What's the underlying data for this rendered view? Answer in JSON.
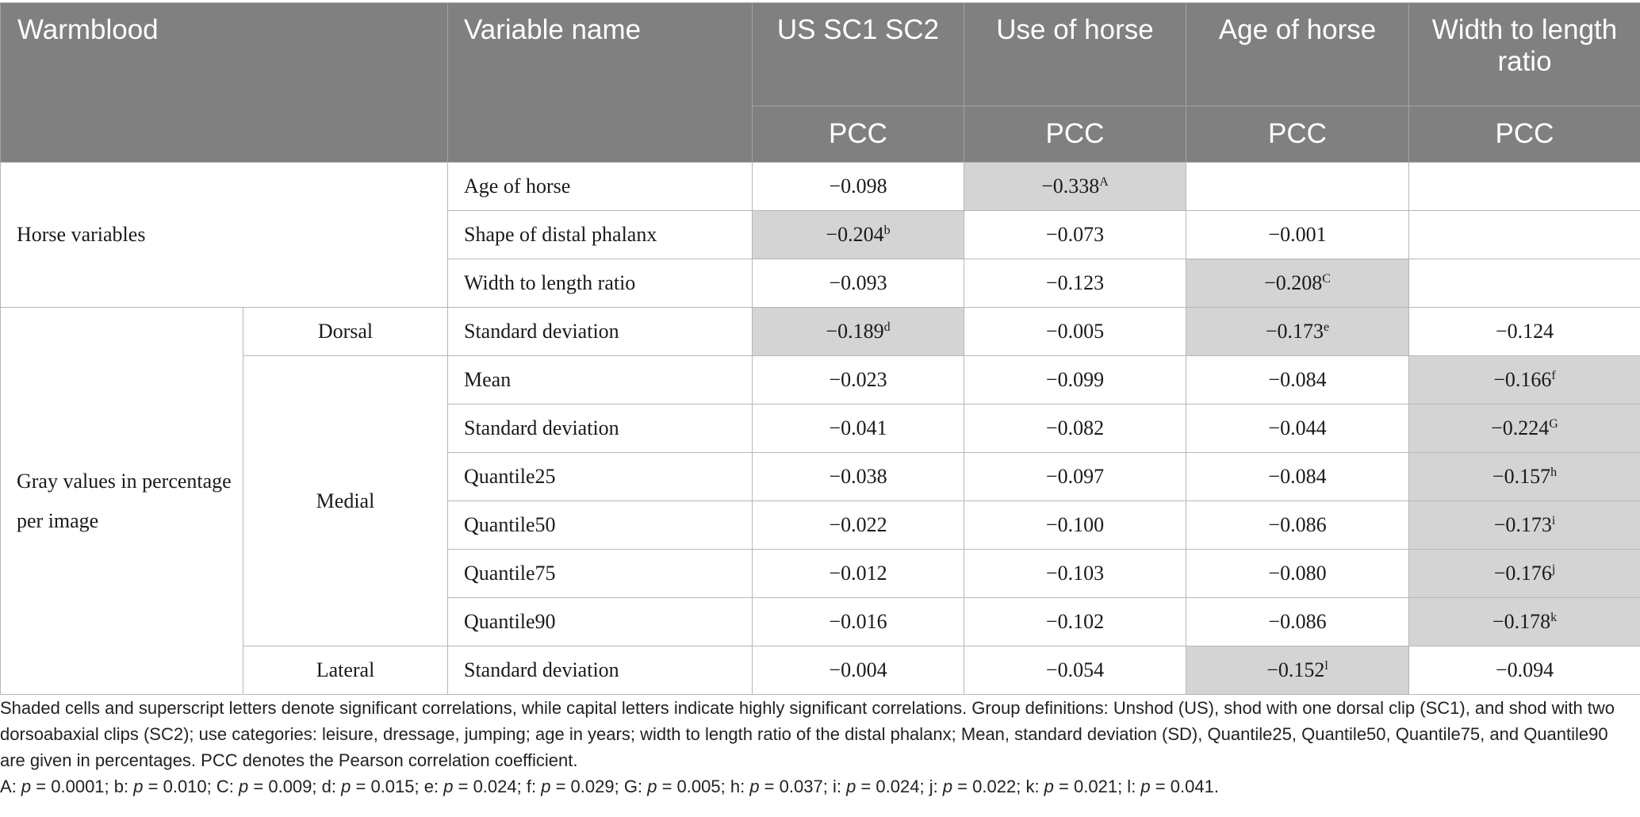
{
  "header": {
    "group_label": "Warmblood",
    "variable_label": "Variable name",
    "columns": [
      "US SC1 SC2",
      "Use of horse",
      "Age of horse",
      "Width to length ratio"
    ],
    "stat_label": "PCC"
  },
  "sections": [
    {
      "label": "Horse variables",
      "rows": [
        {
          "variable": "Age of horse",
          "cells": [
            {
              "v": "−0.098"
            },
            {
              "v": "−0.338",
              "sup": "A",
              "shaded": true
            },
            {
              "v": ""
            },
            {
              "v": ""
            }
          ]
        },
        {
          "variable": "Shape of distal phalanx",
          "cells": [
            {
              "v": "−0.204",
              "sup": "b",
              "shaded": true
            },
            {
              "v": "−0.073"
            },
            {
              "v": "−0.001"
            },
            {
              "v": ""
            }
          ]
        },
        {
          "variable": "Width to length ratio",
          "cells": [
            {
              "v": "−0.093"
            },
            {
              "v": "−0.123"
            },
            {
              "v": "−0.208",
              "sup": "C",
              "shaded": true
            },
            {
              "v": ""
            }
          ]
        }
      ]
    },
    {
      "label": "Gray values in percentage per image",
      "subgroups": [
        {
          "label": "Dorsal",
          "rows": [
            {
              "variable": "Standard deviation",
              "cells": [
                {
                  "v": "−0.189",
                  "sup": "d",
                  "shaded": true
                },
                {
                  "v": "−0.005"
                },
                {
                  "v": "−0.173",
                  "sup": "e",
                  "shaded": true
                },
                {
                  "v": "−0.124"
                }
              ]
            }
          ]
        },
        {
          "label": "Medial",
          "rows": [
            {
              "variable": "Mean",
              "cells": [
                {
                  "v": "−0.023"
                },
                {
                  "v": "−0.099"
                },
                {
                  "v": "−0.084"
                },
                {
                  "v": "−0.166",
                  "sup": "f",
                  "shaded": true
                }
              ]
            },
            {
              "variable": "Standard deviation",
              "cells": [
                {
                  "v": "−0.041"
                },
                {
                  "v": "−0.082"
                },
                {
                  "v": "−0.044"
                },
                {
                  "v": "−0.224",
                  "sup": "G",
                  "shaded": true
                }
              ]
            },
            {
              "variable": "Quantile25",
              "cells": [
                {
                  "v": "−0.038"
                },
                {
                  "v": "−0.097"
                },
                {
                  "v": "−0.084"
                },
                {
                  "v": "−0.157",
                  "sup": "h",
                  "shaded": true
                }
              ]
            },
            {
              "variable": "Quantile50",
              "cells": [
                {
                  "v": "−0.022"
                },
                {
                  "v": "−0.100"
                },
                {
                  "v": "−0.086"
                },
                {
                  "v": "−0.173",
                  "sup": "i",
                  "shaded": true
                }
              ]
            },
            {
              "variable": "Quantile75",
              "cells": [
                {
                  "v": "−0.012"
                },
                {
                  "v": "−0.103"
                },
                {
                  "v": "−0.080"
                },
                {
                  "v": "−0.176",
                  "sup": "j",
                  "shaded": true
                }
              ]
            },
            {
              "variable": "Quantile90",
              "cells": [
                {
                  "v": "−0.016"
                },
                {
                  "v": "−0.102"
                },
                {
                  "v": "−0.086"
                },
                {
                  "v": "−0.178",
                  "sup": "k",
                  "shaded": true
                }
              ]
            }
          ]
        },
        {
          "label": "Lateral",
          "rows": [
            {
              "variable": "Standard deviation",
              "cells": [
                {
                  "v": "−0.004"
                },
                {
                  "v": "−0.054"
                },
                {
                  "v": "−0.152",
                  "sup": "l",
                  "shaded": true
                },
                {
                  "v": "−0.094"
                }
              ]
            }
          ]
        }
      ]
    }
  ],
  "footnote": {
    "text": "Shaded cells and superscript letters denote significant correlations, while capital letters indicate highly significant correlations. Group definitions: Unshod (US), shod with one dorsal clip (SC1), and shod with two dorsoabaxial clips (SC2); use categories: leisure, dressage, jumping; age in years; width to length ratio of the distal phalanx; Mean, standard deviation (SD), Quantile25, Quantile50, Quantile75, and Quantile90 are given in percentages. PCC denotes the Pearson correlation coefficient.",
    "p_values": [
      {
        "label": "A",
        "value": "0.0001"
      },
      {
        "label": "b",
        "value": "0.010"
      },
      {
        "label": "C",
        "value": "0.009"
      },
      {
        "label": "d",
        "value": "0.015"
      },
      {
        "label": "e",
        "value": "0.024"
      },
      {
        "label": "f",
        "value": "0.029"
      },
      {
        "label": "G",
        "value": "0.005"
      },
      {
        "label": "h",
        "value": "0.037"
      },
      {
        "label": "i",
        "value": "0.024"
      },
      {
        "label": "j",
        "value": "0.022"
      },
      {
        "label": "k",
        "value": "0.021"
      },
      {
        "label": "l",
        "value": "0.041"
      }
    ]
  }
}
